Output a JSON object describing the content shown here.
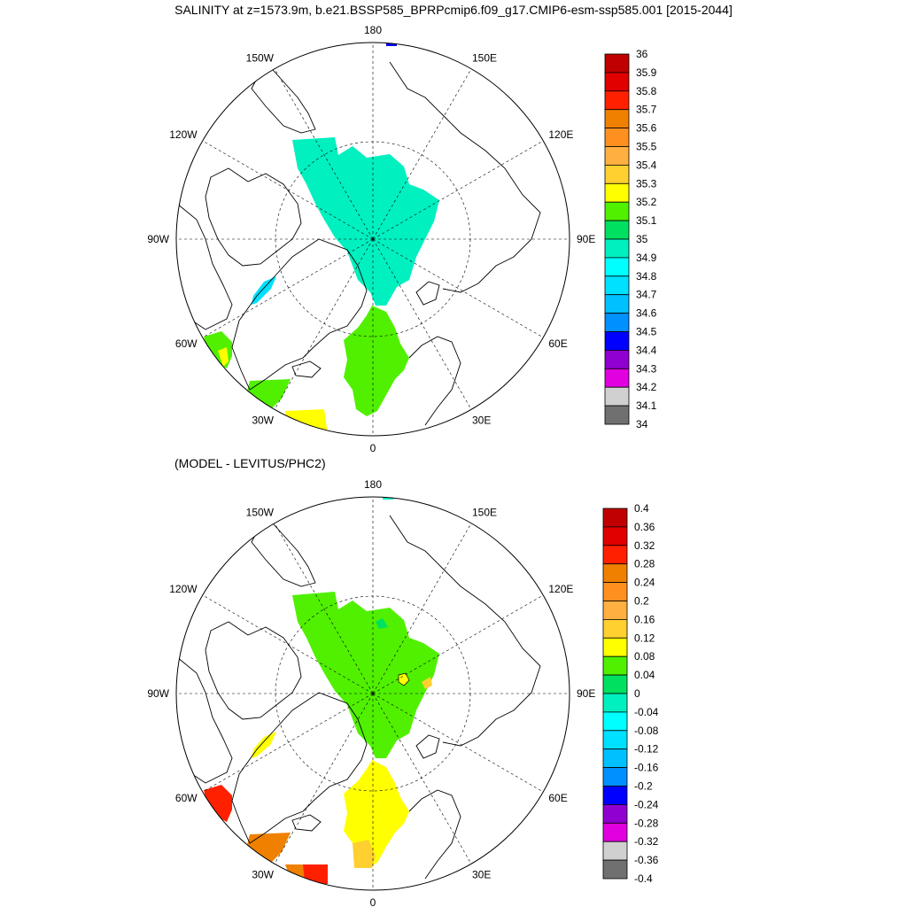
{
  "title": "SALINITY at z=1573.9m, b.e21.BSSP585_BPRPcmip6.f09_g17.CMIP6-esm-ssp585.001 [2015-2044]",
  "subtitle": "(MODEL - LEVITUS/PHC2)",
  "longitude_labels": [
    "180",
    "150E",
    "120E",
    "90E",
    "60E",
    "30E",
    "0",
    "30W",
    "60W",
    "90W",
    "120W",
    "150W"
  ],
  "maps": [
    {
      "name": "salinity-map",
      "colorbar": {
        "labels": [
          "36",
          "35.9",
          "35.8",
          "35.7",
          "35.6",
          "35.5",
          "35.4",
          "35.3",
          "35.2",
          "35.1",
          "35",
          "34.9",
          "34.8",
          "34.7",
          "34.6",
          "34.5",
          "34.4",
          "34.3",
          "34.2",
          "34.1",
          "34"
        ],
        "colors": [
          "#c00000",
          "#e00000",
          "#ff2000",
          "#f08000",
          "#ff9020",
          "#ffb040",
          "#ffd030",
          "#ffff00",
          "#50f000",
          "#00e060",
          "#00f0c0",
          "#00ffff",
          "#00e0ff",
          "#00c0ff",
          "#0090ff",
          "#0000ff",
          "#9000d0",
          "#e000e0",
          "#d0d0d0",
          "#707070"
        ]
      }
    },
    {
      "name": "difference-map",
      "colorbar": {
        "labels": [
          "0.4",
          "0.36",
          "0.32",
          "0.28",
          "0.24",
          "0.2",
          "0.16",
          "0.12",
          "0.08",
          "0.04",
          "0",
          "-0.04",
          "-0.08",
          "-0.12",
          "-0.16",
          "-0.2",
          "-0.24",
          "-0.28",
          "-0.32",
          "-0.36",
          "-0.4"
        ],
        "colors": [
          "#c00000",
          "#e00000",
          "#ff2000",
          "#f08000",
          "#ff9020",
          "#ffb040",
          "#ffd030",
          "#ffff00",
          "#50f000",
          "#00e060",
          "#00f0c0",
          "#00ffff",
          "#00e0ff",
          "#00c0ff",
          "#0090ff",
          "#0000ff",
          "#9000d0",
          "#e000e0",
          "#d0d0d0",
          "#707070"
        ]
      }
    }
  ]
}
